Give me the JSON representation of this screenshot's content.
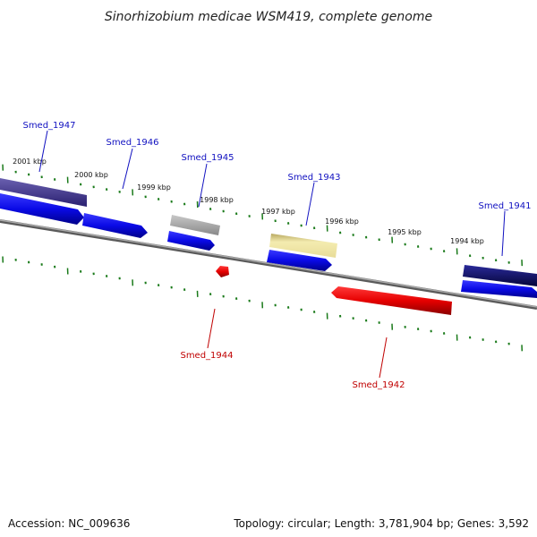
{
  "title": "Sinorhizobium medicae WSM419, complete genome",
  "footer": {
    "accession": "Accession: NC_009636",
    "summary": "Topology: circular; Length: 3,781,904 bp; Genes: 3,592"
  },
  "colors": {
    "forward_gene": "#0a0ae6",
    "reverse_gene": "#e60000",
    "tick": "#1a7a1a",
    "backbone": "#808080",
    "label_forward": "#1010c0",
    "label_reverse": "#c00000"
  },
  "ticks": [
    "2001 kbp",
    "2000 kbp",
    "1999 kbp",
    "1998 kbp",
    "1997 kbp",
    "1996 kbp",
    "1995 kbp",
    "1994 kbp"
  ],
  "genes": [
    {
      "id": "Smed_1947",
      "strand": "forward",
      "color": "#0a0ae6",
      "feature_color": "#4a3f8a"
    },
    {
      "id": "Smed_1946",
      "strand": "forward",
      "color": "#0a0ae6"
    },
    {
      "id": "Smed_1945",
      "strand": "forward",
      "color": "#0a0ae6",
      "feature_color": "#a8a8a8"
    },
    {
      "id": "Smed_1944",
      "strand": "reverse",
      "color": "#e60000"
    },
    {
      "id": "Smed_1943",
      "strand": "forward",
      "color": "#0a0ae6",
      "feature_color": "#ece2a0"
    },
    {
      "id": "Smed_1942",
      "strand": "reverse",
      "color": "#e60000"
    },
    {
      "id": "Smed_1941",
      "strand": "forward",
      "color": "#0a0ae6",
      "feature_color": "#0f0f6e"
    }
  ]
}
